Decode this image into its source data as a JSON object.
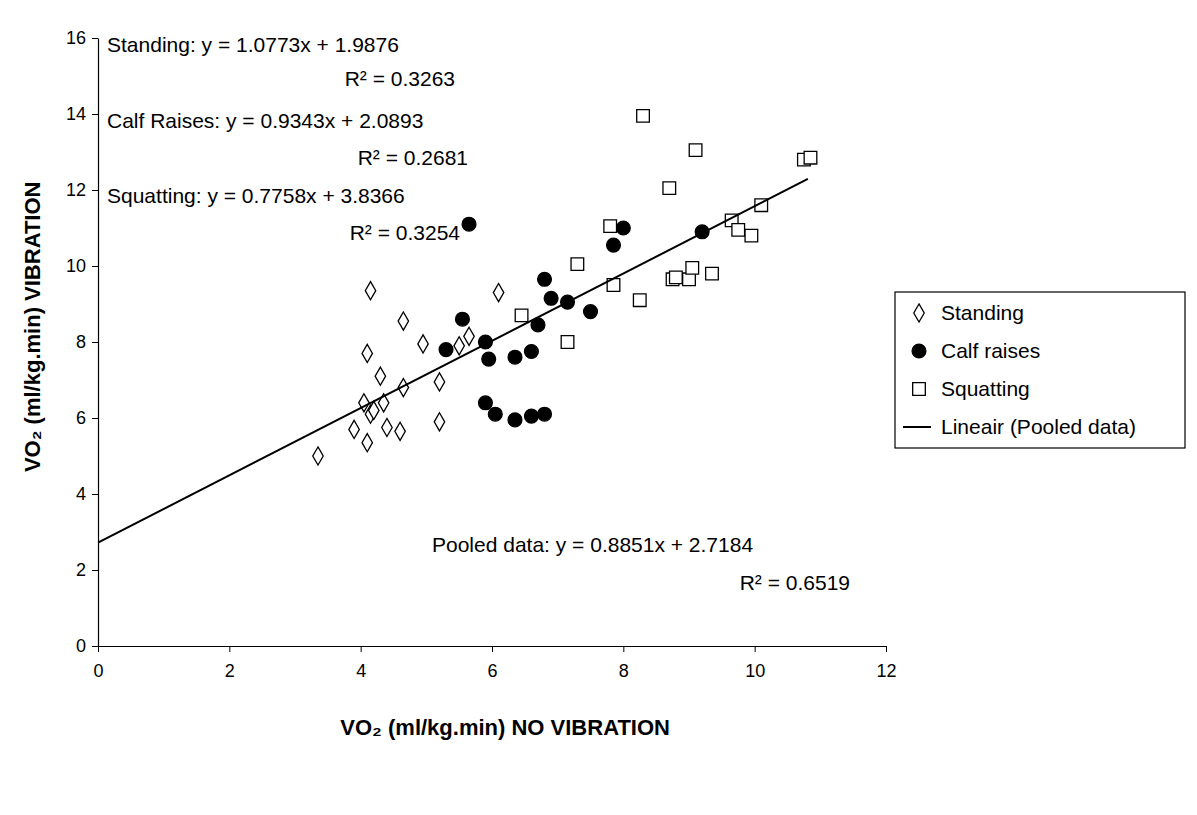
{
  "chart_data": {
    "type": "scatter",
    "x_label": "VO₂ (ml/kg.min) NO VIBRATION",
    "y_label": "VO₂ (ml/kg.min) VIBRATION",
    "xlim": [
      0,
      12
    ],
    "xticks": [
      0,
      2,
      4,
      6,
      8,
      10,
      12
    ],
    "ylim": [
      0,
      16
    ],
    "yticks": [
      0,
      2,
      4,
      6,
      8,
      10,
      12,
      14,
      16
    ],
    "grid": false,
    "legend": "right",
    "annotations": [
      "Standing: y = 1.0773x + 1.9876",
      "R² = 0.3263",
      "Calf Raises: y = 0.9343x + 2.0893",
      "R² = 0.2681",
      "Squatting: y = 0.7758x + 3.8366",
      "R² = 0.3254",
      "Pooled data: y = 0.8851x + 2.7184",
      "R² = 0.6519"
    ],
    "series": [
      {
        "name": "Standing",
        "type": "scatter",
        "marker": "open_diamond",
        "color": "#000000",
        "x": [
          3.35,
          3.9,
          4.05,
          4.1,
          4.1,
          4.15,
          4.15,
          4.2,
          4.3,
          4.35,
          4.4,
          4.6,
          4.65,
          4.65,
          4.95,
          5.2,
          5.2,
          5.5,
          5.65,
          6.1
        ],
        "values": [
          5.0,
          5.7,
          6.4,
          7.7,
          5.35,
          9.35,
          6.1,
          6.2,
          7.1,
          6.4,
          5.75,
          5.65,
          8.55,
          6.8,
          7.95,
          6.95,
          5.9,
          7.9,
          8.15,
          9.3
        ]
      },
      {
        "name": "Calf raises",
        "type": "scatter",
        "marker": "filled_circle",
        "color": "#000000",
        "x": [
          5.65,
          5.3,
          5.55,
          5.9,
          5.95,
          5.9,
          6.05,
          6.35,
          6.35,
          6.6,
          6.6,
          6.7,
          6.8,
          6.8,
          6.9,
          7.15,
          7.5,
          7.85,
          8.0,
          9.2
        ],
        "values": [
          11.1,
          7.8,
          8.6,
          8.0,
          7.55,
          6.4,
          6.1,
          5.95,
          7.6,
          6.05,
          7.75,
          8.45,
          9.65,
          6.1,
          9.15,
          9.05,
          8.8,
          10.55,
          11.0,
          10.9
        ]
      },
      {
        "name": "Squatting",
        "type": "scatter",
        "marker": "open_square",
        "color": "#000000",
        "x": [
          6.45,
          7.15,
          7.3,
          7.8,
          7.85,
          8.25,
          8.3,
          8.7,
          8.75,
          8.8,
          9.0,
          9.05,
          9.1,
          9.35,
          9.65,
          9.75,
          9.95,
          10.1,
          10.75,
          10.85
        ],
        "values": [
          8.7,
          8.0,
          10.05,
          11.05,
          9.5,
          9.1,
          13.95,
          12.05,
          9.65,
          9.7,
          9.65,
          9.95,
          13.05,
          9.8,
          11.2,
          10.95,
          10.8,
          11.6,
          12.8,
          12.85
        ]
      },
      {
        "name": "Lineair (Pooled data)",
        "type": "line",
        "line_style": "solid",
        "color": "#000000",
        "x": [
          0,
          10.81
        ],
        "values": [
          2.72,
          12.29
        ]
      }
    ]
  }
}
